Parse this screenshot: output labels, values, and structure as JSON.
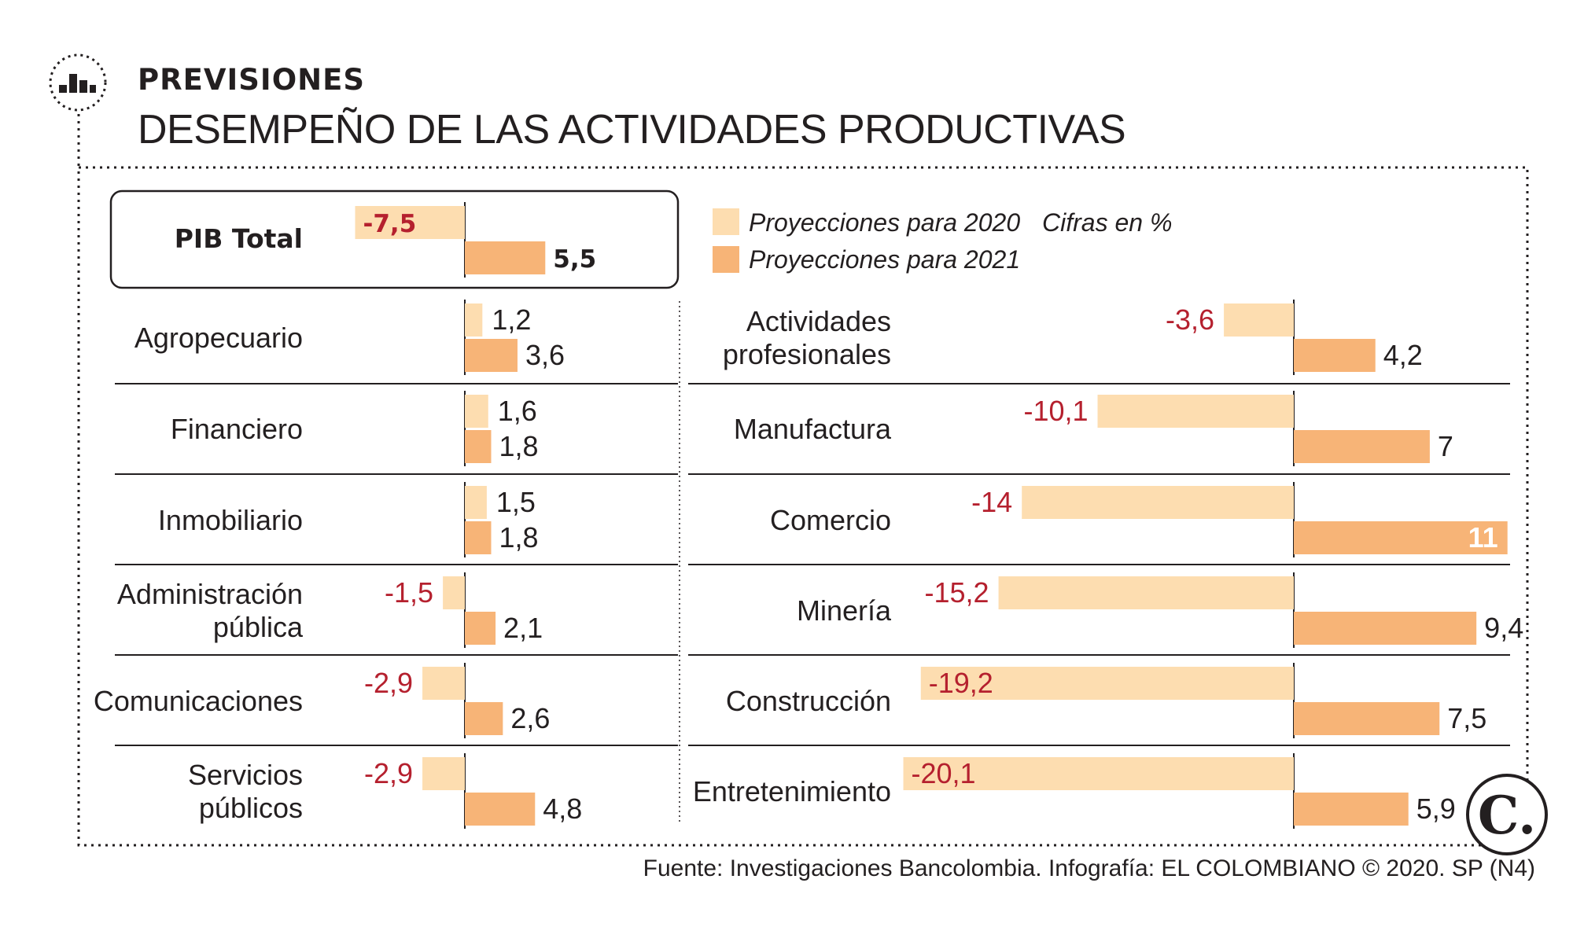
{
  "header": {
    "kicker": "PREVISIONES",
    "title": "DESEMPEÑO DE LAS ACTIVIDADES PRODUCTIVAS"
  },
  "legend": {
    "series_2020": "Proyecciones para 2020",
    "series_2021": "Proyecciones para 2021",
    "units_note": "Cifras en %"
  },
  "colors": {
    "series_2020": "#fdddb0",
    "series_2021": "#f7b477",
    "negative_text": "#b5202e",
    "text": "#231f20"
  },
  "chart_data": {
    "type": "bar",
    "orientation": "horizontal",
    "title": "DESEMPEÑO DE LAS ACTIVIDADES PRODUCTIVAS",
    "units": "%",
    "series": [
      {
        "name": "Proyecciones para 2020"
      },
      {
        "name": "Proyecciones para 2021"
      }
    ],
    "highlight": {
      "label": "PIB Total",
      "v2020": -7.5,
      "v2021": 5.5,
      "t2020": "-7,5",
      "t2021": "5,5"
    },
    "left_panel": [
      {
        "label": [
          "Agropecuario"
        ],
        "v2020": 1.2,
        "v2021": 3.6,
        "t2020": "1,2",
        "t2021": "3,6"
      },
      {
        "label": [
          "Financiero"
        ],
        "v2020": 1.6,
        "v2021": 1.8,
        "t2020": "1,6",
        "t2021": "1,8"
      },
      {
        "label": [
          "Inmobiliario"
        ],
        "v2020": 1.5,
        "v2021": 1.8,
        "t2020": "1,5",
        "t2021": "1,8"
      },
      {
        "label": [
          "Administración",
          "pública"
        ],
        "v2020": -1.5,
        "v2021": 2.1,
        "t2020": "-1,5",
        "t2021": "2,1"
      },
      {
        "label": [
          "Comunicaciones"
        ],
        "v2020": -2.9,
        "v2021": 2.6,
        "t2020": "-2,9",
        "t2021": "2,6"
      },
      {
        "label": [
          "Servicios",
          "públicos"
        ],
        "v2020": -2.9,
        "v2021": 4.8,
        "t2020": "-2,9",
        "t2021": "4,8"
      }
    ],
    "right_panel": [
      {
        "label": [
          "Actividades",
          "profesionales"
        ],
        "v2020": -3.6,
        "v2021": 4.2,
        "t2020": "-3,6",
        "t2021": "4,2"
      },
      {
        "label": [
          "Manufactura"
        ],
        "v2020": -10.1,
        "v2021": 7,
        "t2020": "-10,1",
        "t2021": "7"
      },
      {
        "label": [
          "Comercio"
        ],
        "v2020": -14,
        "v2021": 11,
        "t2020": "-14",
        "t2021": "11"
      },
      {
        "label": [
          "Minería"
        ],
        "v2020": -15.2,
        "v2021": 9.4,
        "t2020": "-15,2",
        "t2021": "9,4"
      },
      {
        "label": [
          "Construcción"
        ],
        "v2020": -19.2,
        "v2021": 7.5,
        "t2020": "-19,2",
        "t2021": "7,5"
      },
      {
        "label": [
          "Entretenimiento"
        ],
        "v2020": -20.1,
        "v2021": 5.9,
        "t2020": "-20,1",
        "t2021": "5,9"
      }
    ]
  },
  "logo": {
    "letter": "C."
  },
  "footer": {
    "source": "Fuente: Investigaciones Bancolombia. Infografía: EL COLOMBIANO © 2020. SP (N4)"
  }
}
